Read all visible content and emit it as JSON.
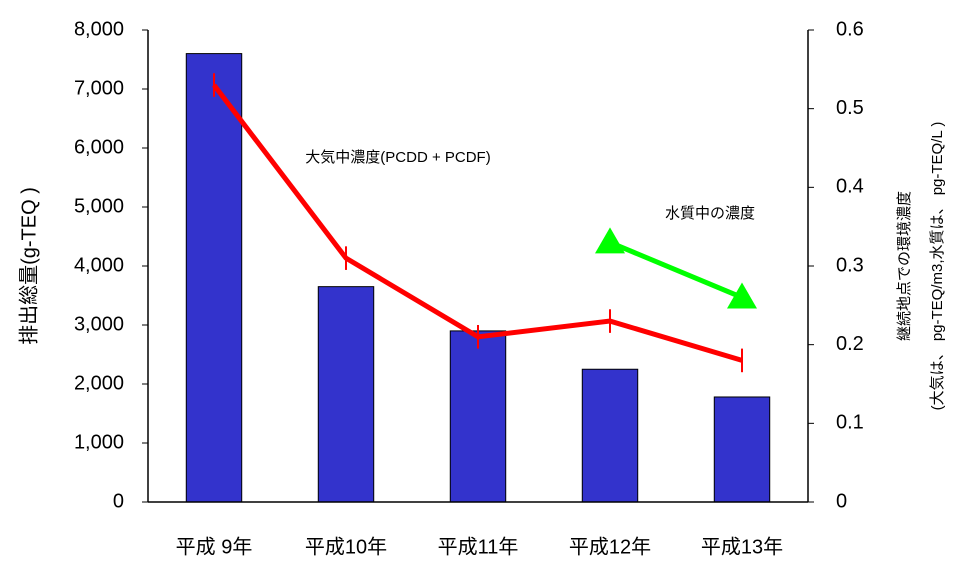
{
  "chart_data": {
    "type": "bar",
    "categories": [
      "平成 9年",
      "平成10年",
      "平成11年",
      "平成12年",
      "平成13年"
    ],
    "ylabel": "排出総量(g-TEQ )",
    "y2label": [
      "継続地点での環境濃度",
      "(大気は、 pg-TEQ/m3,水質は、 pg-TEQ/L )"
    ],
    "annotations": [
      "大気中濃度(PCDD + PCDF)",
      "水質中の濃度"
    ],
    "ylim": [
      0,
      8000
    ],
    "yticks": [
      0,
      {
        "value": 1000,
        "label": "1,000"
      },
      {
        "value": 2000,
        "label": "2,000"
      },
      {
        "value": 3000,
        "label": "3,000"
      },
      {
        "value": 4000,
        "label": "4,000"
      },
      {
        "value": 5000,
        "label": "5,000"
      },
      {
        "value": 6000,
        "label": "6,000"
      },
      {
        "value": 7000,
        "label": "7,000"
      },
      {
        "value": 8000,
        "label": "8,000"
      }
    ],
    "y2lim": [
      0,
      0.6
    ],
    "y2ticks": [
      0,
      0.1,
      0.2,
      0.3,
      0.4,
      0.5,
      0.6
    ],
    "series": [
      {
        "type": "bar",
        "color": "#3333cc",
        "values": [
          7600,
          3650,
          2900,
          2250,
          1780
        ]
      },
      {
        "type": "line",
        "axis": "y2",
        "color": "#ff0000",
        "values": [
          0.53,
          0.31,
          0.21,
          0.23,
          0.18
        ],
        "errors": [
          0.015,
          0.015,
          0.015,
          0.015,
          0.015
        ]
      },
      {
        "type": "line",
        "axis": "y2",
        "marker": "triangle",
        "color": "#00ff00",
        "values": [
          null,
          null,
          null,
          0.33,
          0.26
        ]
      }
    ]
  }
}
